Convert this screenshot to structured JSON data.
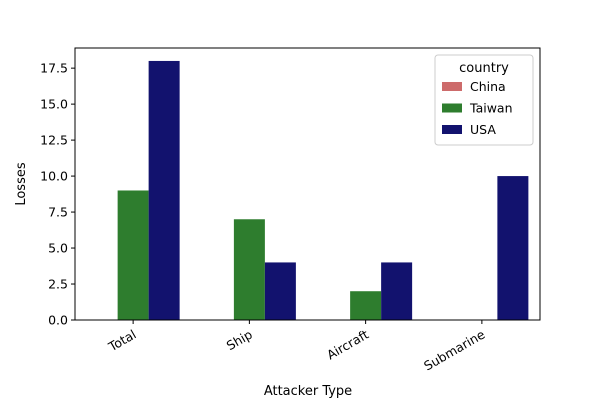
{
  "chart_data": {
    "type": "bar",
    "title": "",
    "xlabel": "Attacker Type",
    "ylabel": "Losses",
    "categories": [
      "Total",
      "Ship",
      "Aircraft",
      "Submarine"
    ],
    "series": [
      {
        "name": "China",
        "values": [
          0,
          0,
          0,
          0
        ],
        "color": "#CD6B6B"
      },
      {
        "name": "Taiwan",
        "values": [
          9,
          7,
          2,
          0
        ],
        "color": "#2E7D2E"
      },
      {
        "name": "USA",
        "values": [
          18,
          4,
          4,
          10
        ],
        "color": "#12126E"
      }
    ],
    "ylim": [
      0,
      18.9
    ],
    "yticks": [
      "0.0",
      "2.5",
      "5.0",
      "7.5",
      "10.0",
      "12.5",
      "15.0",
      "17.5"
    ],
    "grid": false,
    "legend": {
      "title": "country",
      "placement": "upper right"
    },
    "xtick_rotation": 30
  }
}
